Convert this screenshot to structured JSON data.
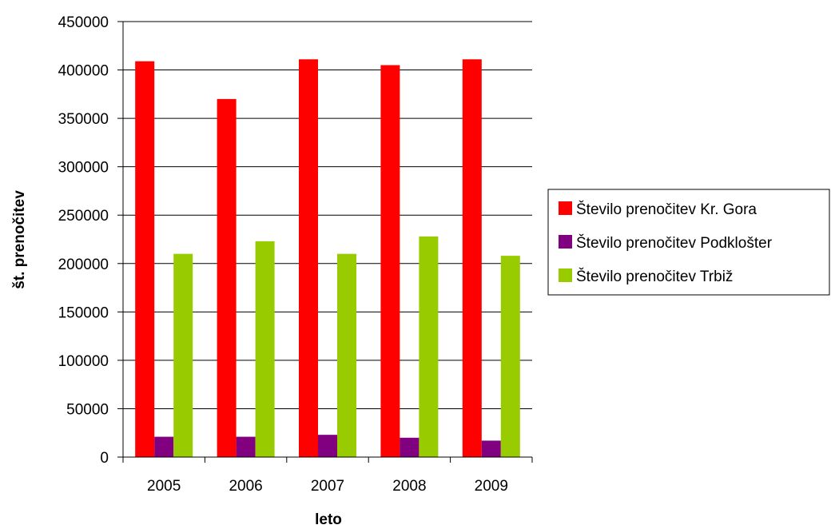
{
  "chart_data": {
    "type": "bar",
    "categories": [
      "2005",
      "2006",
      "2007",
      "2008",
      "2009"
    ],
    "series": [
      {
        "name": "Število prenočitev Kr. Gora",
        "color": "#ff0000",
        "values": [
          409000,
          370000,
          411000,
          405000,
          411000
        ]
      },
      {
        "name": "Število prenočitev Podklošter",
        "color": "#800080",
        "values": [
          21000,
          21000,
          23000,
          20000,
          17000
        ]
      },
      {
        "name": "Število prenočitev Trbiž",
        "color": "#99cc00",
        "values": [
          210000,
          223000,
          210000,
          228000,
          208000
        ]
      }
    ],
    "y_ticks": [
      "0",
      "50000",
      "100000",
      "150000",
      "200000",
      "250000",
      "300000",
      "350000",
      "400000",
      "450000"
    ],
    "ylim": [
      0,
      450000
    ],
    "xlabel": "leto",
    "ylabel": "št. prenočitev",
    "grid": true,
    "legend_position": "right"
  }
}
